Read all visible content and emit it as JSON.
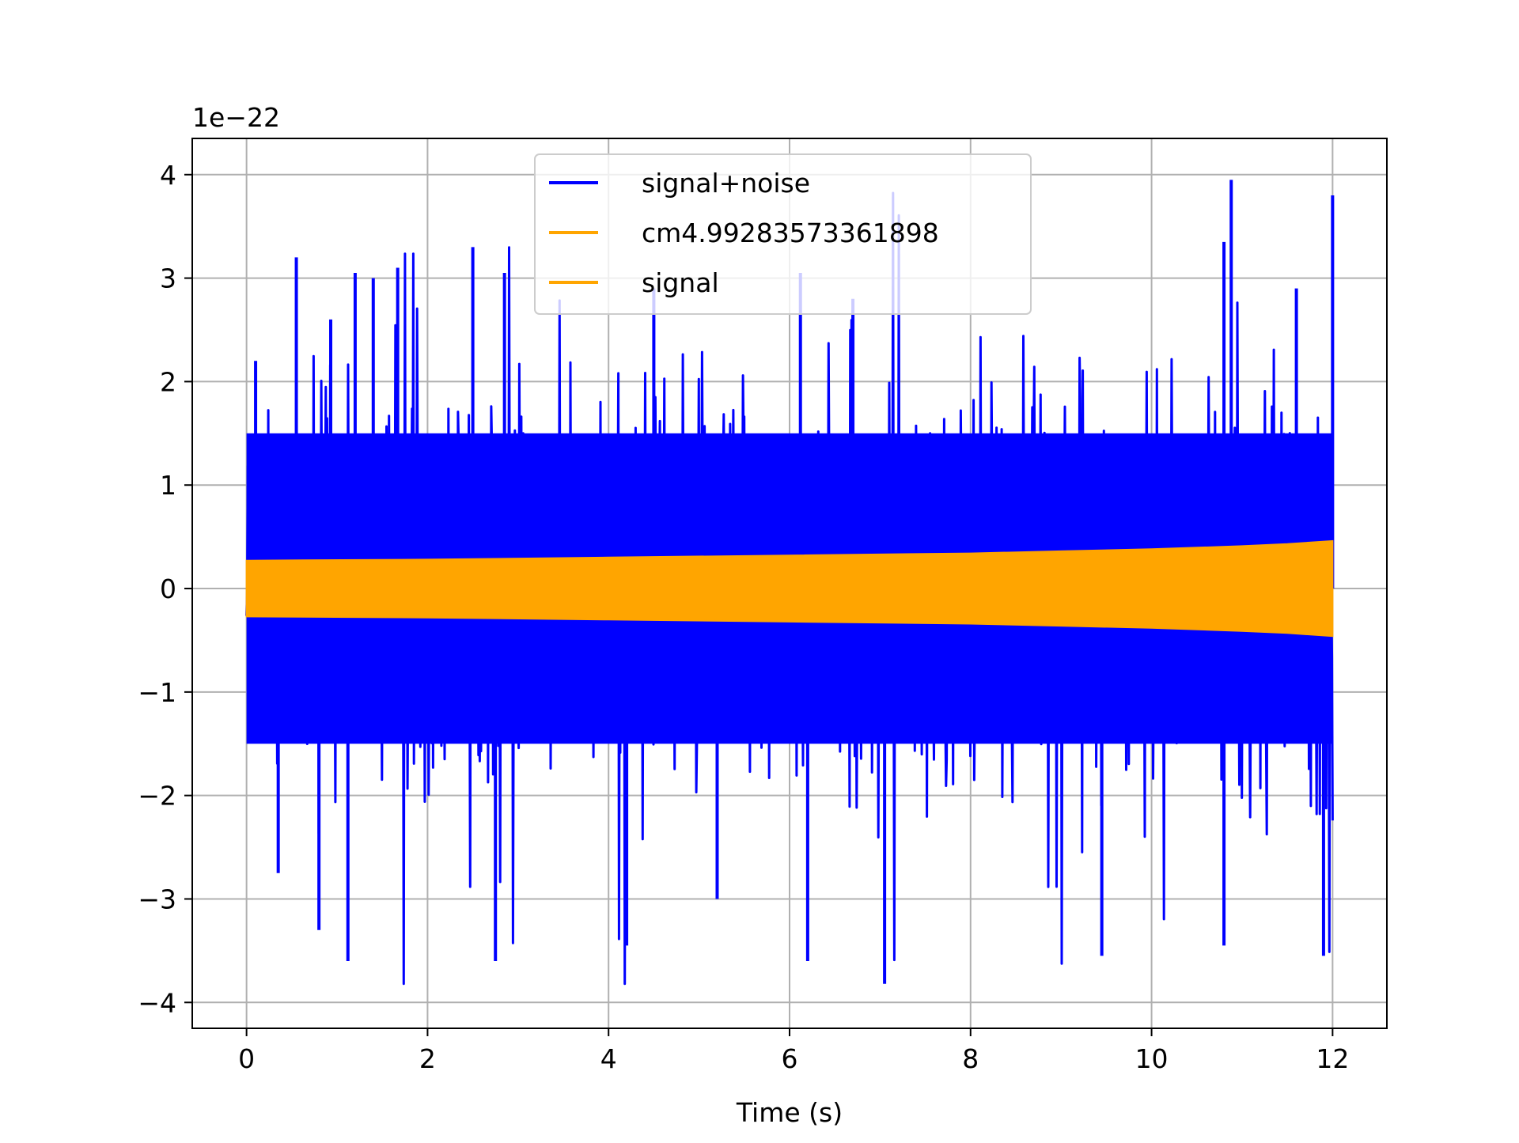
{
  "chart_data": {
    "type": "line",
    "title": "",
    "xlabel": "Time (s)",
    "ylabel": "",
    "y_offset_label": "1e−22",
    "xlim": [
      -0.6,
      12.6
    ],
    "ylim": [
      -4.25,
      4.35
    ],
    "xticks": [
      0,
      2,
      4,
      6,
      8,
      10,
      12
    ],
    "xtick_labels": [
      "0",
      "2",
      "4",
      "6",
      "8",
      "10",
      "12"
    ],
    "yticks": [
      -4,
      -3,
      -2,
      -1,
      0,
      1,
      2,
      3,
      4
    ],
    "ytick_labels": [
      "−4",
      "−3",
      "−2",
      "−1",
      "0",
      "1",
      "2",
      "3",
      "4"
    ],
    "grid": true,
    "legend_position": "upper-center",
    "legend": [
      {
        "label": "signal+noise",
        "color": "#0000ff"
      },
      {
        "label": "cm4.99283573361898",
        "color": "#ffa500"
      },
      {
        "label": "signal",
        "color": "#ffa500"
      }
    ],
    "series": [
      {
        "name": "signal+noise",
        "color": "#0000ff",
        "x_range": [
          0,
          12
        ],
        "description_stats": {
          "core_band": [
            -1.5,
            1.5
          ],
          "peak_max": 3.95,
          "peak_min": -3.82
        },
        "notable_peaks": [
          [
            0.1,
            2.2
          ],
          [
            0.55,
            3.2
          ],
          [
            0.93,
            2.6
          ],
          [
            1.2,
            3.05
          ],
          [
            1.4,
            3.0
          ],
          [
            1.67,
            3.1
          ],
          [
            2.5,
            3.3
          ],
          [
            2.85,
            3.05
          ],
          [
            4.5,
            2.9
          ],
          [
            6.12,
            3.05
          ],
          [
            6.7,
            2.8
          ],
          [
            10.8,
            3.35
          ],
          [
            10.88,
            3.95
          ],
          [
            11.6,
            2.9
          ],
          [
            12.0,
            3.8
          ]
        ],
        "notable_troughs": [
          [
            0.35,
            -2.75
          ],
          [
            0.8,
            -3.3
          ],
          [
            1.12,
            -3.6
          ],
          [
            2.75,
            -3.6
          ],
          [
            4.2,
            -3.45
          ],
          [
            5.2,
            -3.0
          ],
          [
            6.2,
            -3.6
          ],
          [
            7.05,
            -3.82
          ],
          [
            9.45,
            -3.55
          ],
          [
            10.8,
            -3.45
          ],
          [
            11.9,
            -3.55
          ]
        ]
      },
      {
        "name": "signal",
        "color": "#ffa500",
        "x_range": [
          0,
          12
        ],
        "envelope": {
          "t": [
            0,
            2,
            4,
            6,
            8,
            9,
            10,
            11,
            11.5,
            12
          ],
          "amplitude": [
            0.27,
            0.28,
            0.3,
            0.32,
            0.34,
            0.36,
            0.38,
            0.41,
            0.43,
            0.46
          ]
        }
      }
    ]
  }
}
